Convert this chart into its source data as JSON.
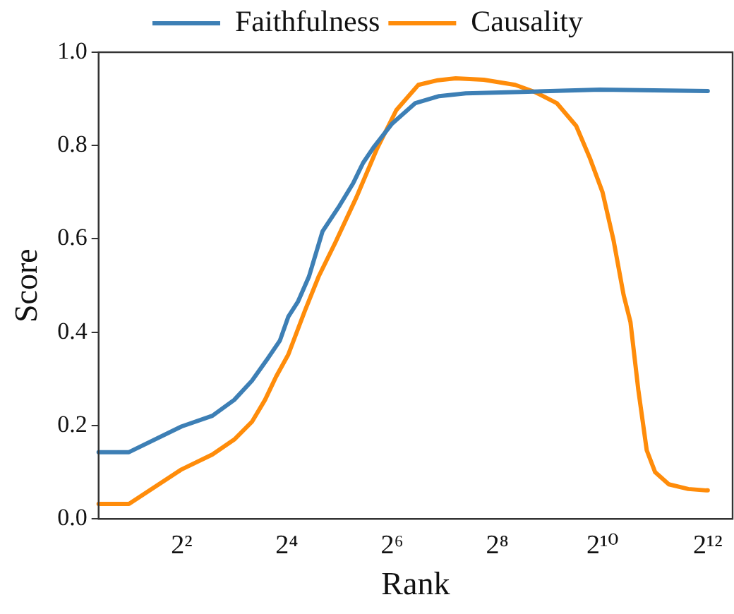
{
  "chart_data": {
    "type": "line",
    "xlabel": "Rank",
    "ylabel": "Score",
    "log": "x",
    "legend": "top",
    "grid": false,
    "marker": "none",
    "line_style": "solid",
    "xlim": [
      1.34,
      5680
    ],
    "xticks": [
      {
        "value": 4,
        "label": "2²"
      },
      {
        "value": 16,
        "label": "2⁴"
      },
      {
        "value": 64,
        "label": "2⁶"
      },
      {
        "value": 256,
        "label": "2⁸"
      },
      {
        "value": 1024,
        "label": "2¹⁰"
      },
      {
        "value": 4096,
        "label": "2¹²"
      }
    ],
    "ylim": [
      0,
      1
    ],
    "yticks": [
      {
        "value": 0,
        "label": "0.0"
      },
      {
        "value": 0.2,
        "label": "0.2"
      },
      {
        "value": 0.4,
        "label": "0.4"
      },
      {
        "value": 0.6,
        "label": "0.6"
      },
      {
        "value": 0.8,
        "label": "0.8"
      },
      {
        "value": 1,
        "label": "1.0"
      }
    ],
    "series": [
      {
        "name": "Faithfulness",
        "color": "#3d7fb5",
        "x": [
          1.34,
          2,
          4,
          6,
          8,
          10.1,
          12.4,
          14.6,
          16.3,
          18.5,
          21.4,
          25.6,
          32,
          38.3,
          43.7,
          50.6,
          64,
          87,
          119,
          169,
          355,
          989,
          4096
        ],
        "values": [
          0.143,
          0.143,
          0.198,
          0.221,
          0.255,
          0.296,
          0.343,
          0.382,
          0.433,
          0.465,
          0.519,
          0.616,
          0.671,
          0.719,
          0.763,
          0.798,
          0.847,
          0.891,
          0.906,
          0.912,
          0.915,
          0.92,
          0.917
        ]
      },
      {
        "name": "Causality",
        "color": "#ff8c0a",
        "x": [
          1.34,
          2,
          4,
          6,
          8,
          10.1,
          12,
          13.9,
          16.3,
          20.3,
          24.3,
          30.3,
          40,
          52.3,
          67.7,
          90.5,
          117,
          148,
          214,
          324,
          419,
          560,
          724,
          867,
          1024,
          1184,
          1351,
          1479,
          1641,
          1833,
          2048,
          2452,
          3169,
          4011,
          4096
        ],
        "values": [
          0.032,
          0.032,
          0.106,
          0.138,
          0.17,
          0.208,
          0.255,
          0.305,
          0.352,
          0.446,
          0.519,
          0.592,
          0.689,
          0.792,
          0.876,
          0.93,
          0.94,
          0.944,
          0.941,
          0.93,
          0.915,
          0.891,
          0.842,
          0.773,
          0.7,
          0.597,
          0.48,
          0.422,
          0.276,
          0.147,
          0.1,
          0.074,
          0.064,
          0.061,
          0.061
        ]
      }
    ]
  }
}
